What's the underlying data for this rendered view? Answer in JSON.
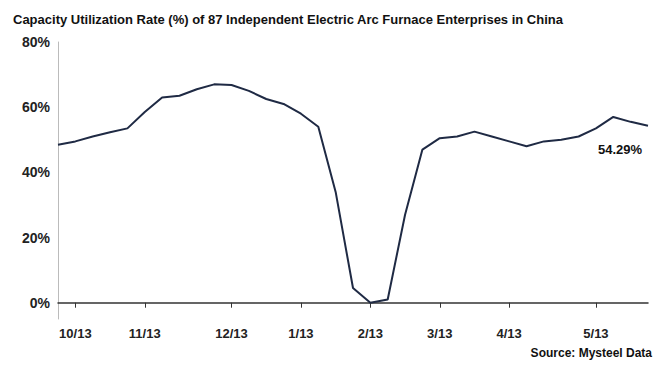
{
  "chart_data": {
    "type": "line",
    "title": "Capacity Utilization Rate (%) of 87 Independent Electric Arc Furnace Enterprises in China",
    "source": "Source: Mysteel Data",
    "categories": [
      null,
      "10/13",
      null,
      null,
      null,
      "11/13",
      null,
      null,
      null,
      null,
      "12/13",
      null,
      null,
      null,
      "1/13",
      null,
      null,
      null,
      "2/13",
      null,
      null,
      null,
      "3/13",
      null,
      null,
      null,
      "4/13",
      null,
      null,
      null,
      null,
      "5/13",
      null,
      null,
      null
    ],
    "values": [
      48.5,
      49.5,
      51,
      52.3,
      53.5,
      58.5,
      63,
      63.5,
      65.5,
      67,
      66.8,
      65,
      62.5,
      61,
      58,
      54,
      34,
      4.5,
      0,
      1,
      27,
      47,
      50.5,
      51,
      52.5,
      51,
      49.5,
      48,
      49.5,
      50,
      51,
      53.5,
      57,
      55.5,
      54.29
    ],
    "value_labels": [
      null,
      null,
      null,
      null,
      null,
      null,
      null,
      null,
      null,
      null,
      null,
      null,
      null,
      null,
      null,
      null,
      null,
      null,
      null,
      null,
      null,
      null,
      null,
      null,
      null,
      null,
      null,
      null,
      null,
      null,
      null,
      null,
      null,
      null,
      "54.29%"
    ],
    "color": "#1f2a44",
    "ylim": [
      -5,
      80
    ],
    "yticks": [
      {
        "value": 0,
        "label": "0%"
      },
      {
        "value": 20,
        "label": "20%"
      },
      {
        "value": 40,
        "label": "40%"
      },
      {
        "value": 60,
        "label": "60%"
      },
      {
        "value": 80,
        "label": "80%"
      }
    ],
    "grid": false
  }
}
